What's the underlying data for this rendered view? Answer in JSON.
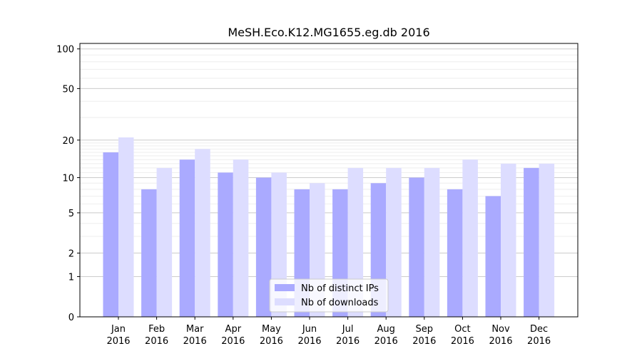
{
  "chart_data": {
    "type": "bar",
    "title": "MeSH.Eco.K12.MG1655.eg.db 2016",
    "xlabel": "",
    "ylabel": "",
    "y_scale": "log(1+y)",
    "ylim": [
      0,
      110
    ],
    "y_ticks": [
      0,
      1,
      2,
      5,
      10,
      20,
      50,
      100
    ],
    "categories": [
      {
        "month": "Jan",
        "year": "2016"
      },
      {
        "month": "Feb",
        "year": "2016"
      },
      {
        "month": "Mar",
        "year": "2016"
      },
      {
        "month": "Apr",
        "year": "2016"
      },
      {
        "month": "May",
        "year": "2016"
      },
      {
        "month": "Jun",
        "year": "2016"
      },
      {
        "month": "Jul",
        "year": "2016"
      },
      {
        "month": "Aug",
        "year": "2016"
      },
      {
        "month": "Sep",
        "year": "2016"
      },
      {
        "month": "Oct",
        "year": "2016"
      },
      {
        "month": "Nov",
        "year": "2016"
      },
      {
        "month": "Dec",
        "year": "2016"
      }
    ],
    "series": [
      {
        "name": "Nb of distinct IPs",
        "color": "#aaaaff",
        "values": [
          16,
          8,
          14,
          11,
          10,
          8,
          8,
          9,
          10,
          8,
          7,
          12
        ]
      },
      {
        "name": "Nb of downloads",
        "color": "#ddddff",
        "values": [
          21,
          12,
          17,
          14,
          11,
          9,
          12,
          12,
          12,
          14,
          13,
          13
        ]
      }
    ],
    "grid": true,
    "legend_position": "bottom-center"
  }
}
